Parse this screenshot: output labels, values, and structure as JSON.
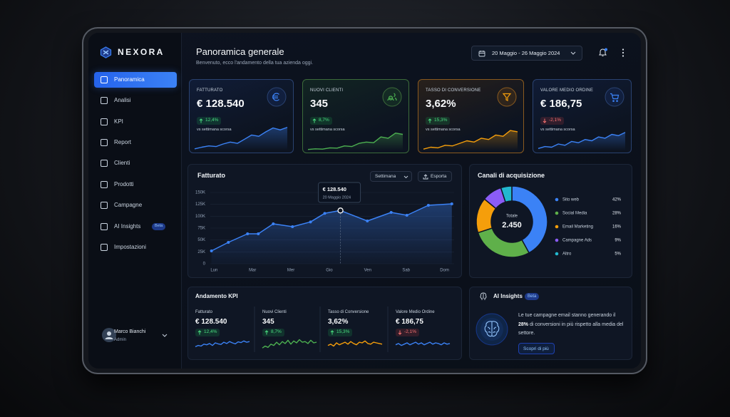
{
  "brand": "NEXORA",
  "sidebar": {
    "active": 0,
    "nav": [
      {
        "label": "Panoramica"
      },
      {
        "label": "Analisi"
      },
      {
        "label": "KPI"
      },
      {
        "label": "Report"
      },
      {
        "label": "Clienti"
      },
      {
        "label": "Prodotti"
      },
      {
        "label": "Campagne"
      },
      {
        "label": "AI Insights",
        "badge": "Beta"
      },
      {
        "label": "Impostazioni"
      }
    ],
    "user": {
      "name": "Marco Bianchi",
      "role": "Admin"
    }
  },
  "header": {
    "title": "Panoramica generale",
    "subtitle": "Benvenuto, ecco l'andamento della tua azienda oggi.",
    "date_range": "20 Maggio - 26 Maggio 2024"
  },
  "kpi_cards": [
    {
      "label": "FATTURATO",
      "value": "€ 128.540",
      "change": "12,4%",
      "direction": "up",
      "note": "vs settimana scorsa",
      "color": "#3b82f6",
      "trend": [
        5,
        10,
        14,
        12,
        20,
        26,
        22,
        35,
        48,
        44,
        58,
        70,
        64,
        72
      ]
    },
    {
      "label": "NUOVI CLIENTI",
      "value": "345",
      "change": "8,7%",
      "direction": "up",
      "note": "vs settimana scorsa",
      "color": "#4caf50",
      "trend": [
        3,
        5,
        4,
        8,
        7,
        14,
        12,
        22,
        26,
        24,
        42,
        38,
        54,
        50
      ]
    },
    {
      "label": "TASSO DI CONVERSIONE",
      "value": "3,62%",
      "change": "15,3%",
      "direction": "up",
      "note": "vs settimana scorsa",
      "color": "#f59e0b",
      "trend": [
        4,
        10,
        8,
        16,
        14,
        22,
        30,
        26,
        38,
        34,
        48,
        44,
        62,
        58
      ]
    },
    {
      "label": "VALORE MEDIO ORDINE",
      "value": "€ 186,75",
      "change": "-2,1%",
      "direction": "down",
      "note": "vs settimana scorsa",
      "color": "#3b82f6",
      "trend": [
        6,
        12,
        10,
        20,
        16,
        28,
        24,
        34,
        30,
        42,
        38,
        50,
        46,
        56
      ]
    }
  ],
  "chart_data": [
    {
      "type": "line",
      "title": "Fatturato",
      "period": "Settimana",
      "action": "Esporta",
      "x": [
        -0.07,
        0.37,
        0.87,
        1.15,
        1.54,
        2.04,
        2.51,
        2.88,
        3.29,
        3.99,
        4.61,
        5.02,
        5.58,
        6.19
      ],
      "series": [
        {
          "name": "Fatturato",
          "color": "#3b82f6",
          "values": [
            27000,
            45000,
            63000,
            63000,
            84000,
            78000,
            88000,
            106000,
            112000,
            90000,
            108000,
            102000,
            123000,
            126000
          ]
        }
      ],
      "xlim": [
        -0.1,
        6.25
      ],
      "xticks": [
        {
          "value": 0,
          "label": "Lun"
        },
        {
          "value": 1,
          "label": "Mar"
        },
        {
          "value": 2,
          "label": "Mer"
        },
        {
          "value": 3,
          "label": "Gio"
        },
        {
          "value": 4,
          "label": "Ven"
        },
        {
          "value": 5,
          "label": "Sab"
        },
        {
          "value": 6,
          "label": "Dom"
        }
      ],
      "ylim": [
        0,
        150000
      ],
      "yticks": [
        0,
        {
          "value": 25000,
          "label": "25K"
        },
        {
          "value": 50000,
          "label": "50K"
        },
        {
          "value": 75000,
          "label": "75K"
        },
        {
          "value": 100000,
          "label": "100K"
        },
        {
          "value": 125000,
          "label": "125K"
        },
        {
          "value": 150000,
          "label": "150K"
        }
      ],
      "grid": true,
      "tooltip": {
        "value": "€ 128.540",
        "date": "20 Maggio 2024"
      }
    },
    {
      "type": "donut",
      "title": "Canali di acquisizione",
      "center_label": "Totale",
      "center_value": "2.450",
      "categories": [
        "Sito web",
        "Social Media",
        "Email Marketing",
        "Campagne Ads",
        "Altro"
      ],
      "values": [
        42,
        28,
        16,
        9,
        5
      ],
      "value_labels": [
        "42%",
        "28%",
        "16%",
        "9%",
        "5%"
      ],
      "colors": [
        "#3b82f6",
        "#5fb04a",
        "#f59e0b",
        "#8b5cf6",
        "#22b8cf"
      ]
    }
  ],
  "kpi_trends": {
    "title": "Andamento KPI",
    "items": [
      {
        "label": "Fatturato",
        "value": "€ 128.540",
        "change": "12,4%",
        "direction": "up",
        "color": "#3b82f6",
        "trend": [
          20,
          30,
          25,
          40,
          35,
          45,
          30,
          50,
          42,
          38,
          55,
          45,
          60,
          50,
          42,
          58,
          52,
          65,
          55,
          60
        ]
      },
      {
        "label": "Nuovi Clienti",
        "value": "345",
        "change": "8,7%",
        "direction": "up",
        "color": "#4caf50",
        "trend": [
          10,
          25,
          15,
          40,
          30,
          55,
          35,
          60,
          45,
          70,
          40,
          65,
          50,
          75,
          55,
          60,
          45,
          70,
          50,
          55
        ]
      },
      {
        "label": "Tasso di Conversione",
        "value": "3,62%",
        "change": "15,3%",
        "direction": "up",
        "color": "#f59e0b",
        "trend": [
          30,
          40,
          25,
          50,
          35,
          45,
          55,
          40,
          60,
          45,
          35,
          55,
          50,
          65,
          45,
          40,
          55,
          50,
          45,
          40
        ]
      },
      {
        "label": "Valore Medio Ordine",
        "value": "€ 186,75",
        "change": "-2,1%",
        "direction": "down",
        "color": "#3b82f6",
        "trend": [
          35,
          45,
          30,
          40,
          50,
          35,
          45,
          55,
          40,
          50,
          35,
          45,
          55,
          40,
          50,
          45,
          35,
          50,
          40,
          45
        ]
      }
    ]
  },
  "ai_insights": {
    "title": "AI Insights",
    "badge": "Beta",
    "text_before": "Le tue campagne email stanno generando il ",
    "highlight": "28%",
    "text_after": " di conversioni in più rispetto alla media del settore.",
    "button": "Scopri di più"
  }
}
